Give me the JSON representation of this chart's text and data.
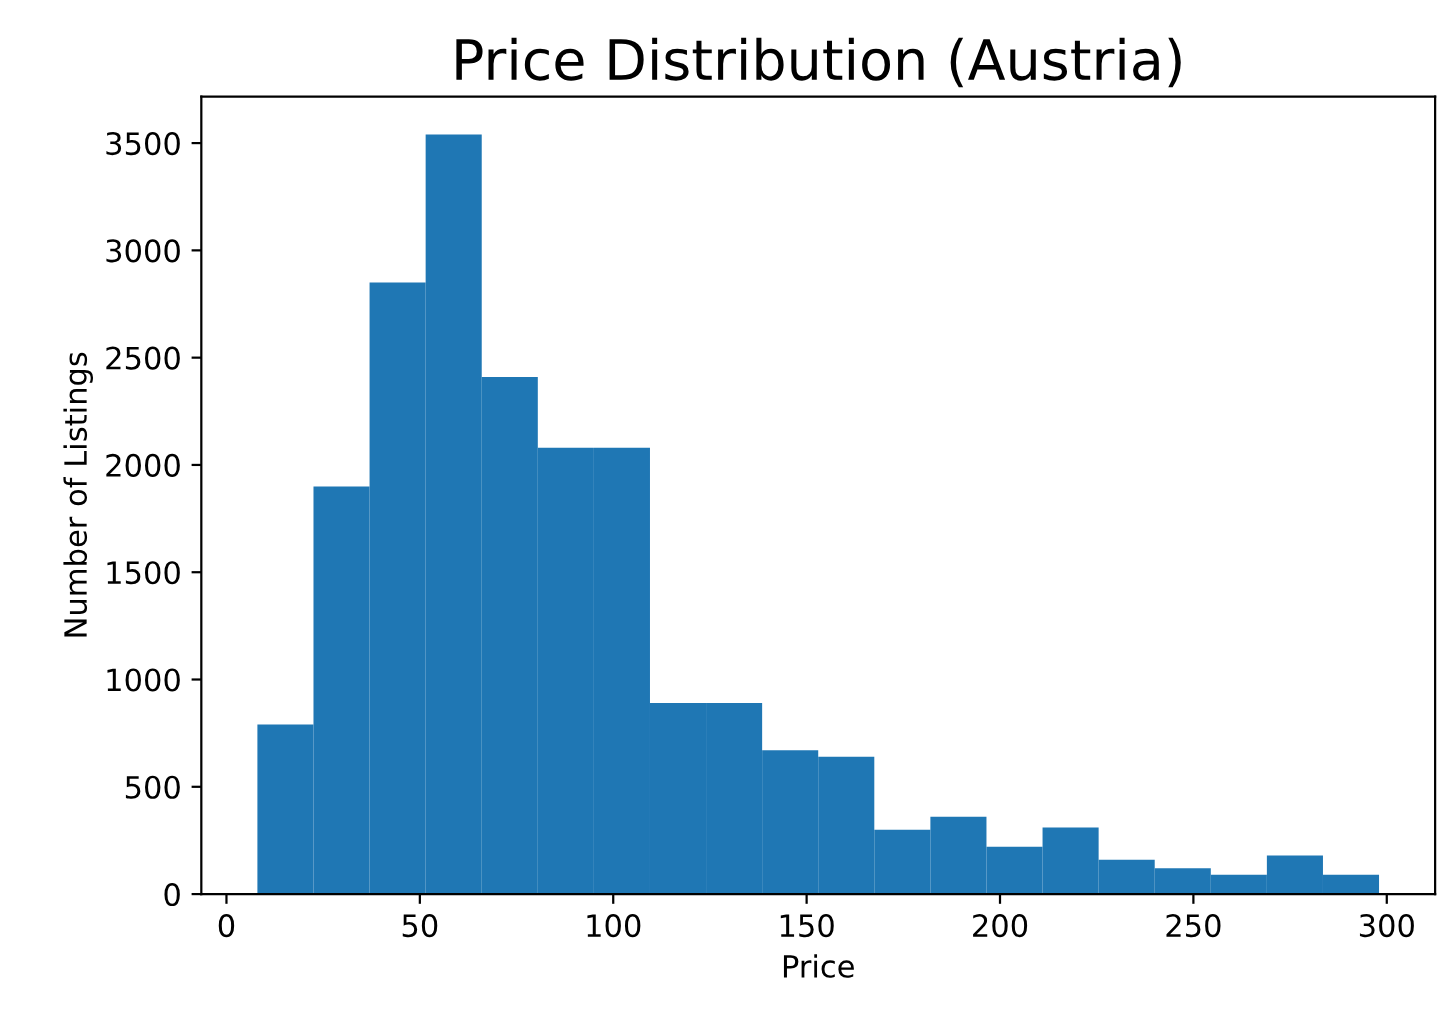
{
  "chart_data": {
    "type": "histogram",
    "title": "Price Distribution (Austria)",
    "xlabel": "Price",
    "ylabel": "Number of Listings",
    "bins": [
      8,
      22.5,
      37,
      51.5,
      66,
      80.5,
      95,
      109.5,
      124,
      138.5,
      153,
      167.5,
      182,
      196.5,
      211,
      225.5,
      240,
      254.5,
      269,
      283.5,
      298
    ],
    "values": [
      790,
      1900,
      2850,
      3540,
      2410,
      2080,
      2080,
      890,
      890,
      670,
      640,
      300,
      360,
      220,
      310,
      160,
      120,
      90,
      180,
      90
    ],
    "color": "#1f77b4",
    "xlim": [
      -6.5,
      312.5
    ],
    "xticks": [
      0,
      50,
      100,
      150,
      200,
      250,
      300
    ],
    "ylim": [
      0,
      3717
    ],
    "yticks": [
      0,
      500,
      1000,
      1500,
      2000,
      2500,
      3000,
      3500
    ],
    "grid": false,
    "legend": false
  }
}
